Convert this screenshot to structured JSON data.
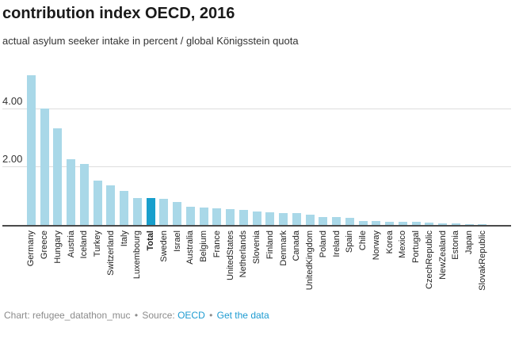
{
  "header": {
    "title": "contribution index OECD, 2016",
    "subtitle": "actual asylum seeker intake in percent / global Königsstein quota"
  },
  "chart_data": {
    "type": "bar",
    "title": "contribution index OECD, 2016",
    "subtitle": "actual asylum seeker intake in percent / global Königsstein quota",
    "categories": [
      "Germany",
      "Greece",
      "Hungary",
      "Austria",
      "Iceland",
      "Turkey",
      "Switzerland",
      "Italy",
      "Luxembourg",
      "Total",
      "Sweden",
      "Israel",
      "Australia",
      "Belgium",
      "France",
      "UnitedStates",
      "Netherlands",
      "Slovenia",
      "Finland",
      "Denmark",
      "Canada",
      "UnitedKingdom",
      "Poland",
      "Ireland",
      "Spain",
      "Chile",
      "Norway",
      "Korea",
      "Mexico",
      "Portugal",
      "CzechRepublic",
      "NewZealand",
      "Estonia",
      "Japan",
      "SlovakRepublic"
    ],
    "values": [
      5.2,
      4.05,
      3.35,
      2.28,
      2.12,
      1.53,
      1.38,
      1.18,
      0.94,
      0.93,
      0.92,
      0.79,
      0.62,
      0.6,
      0.57,
      0.55,
      0.51,
      0.47,
      0.44,
      0.41,
      0.4,
      0.36,
      0.28,
      0.27,
      0.24,
      0.15,
      0.13,
      0.12,
      0.1,
      0.1,
      0.08,
      0.06,
      0.05,
      0.03,
      0.02
    ],
    "highlight_category": "Total",
    "xlabel": "",
    "ylabel": "",
    "ylim": [
      0,
      5.36
    ],
    "yticks": [
      {
        "value": 2,
        "label": "2.00"
      },
      {
        "value": 4,
        "label": "4.00"
      }
    ],
    "grid": "horizontal",
    "legend": "none",
    "colors": {
      "bar": "#a9d8e8",
      "highlight": "#189fcc",
      "gridline": "#dddddd",
      "axis": "#4a4a4a"
    }
  },
  "footer": {
    "chart_credit_label": "Chart:",
    "chart_credit": "refugee_datathon_muc",
    "separator": "•",
    "source_label": "Source:",
    "source_link": "OECD",
    "data_link": "Get the data",
    "link_color": "#1d9bd1"
  }
}
